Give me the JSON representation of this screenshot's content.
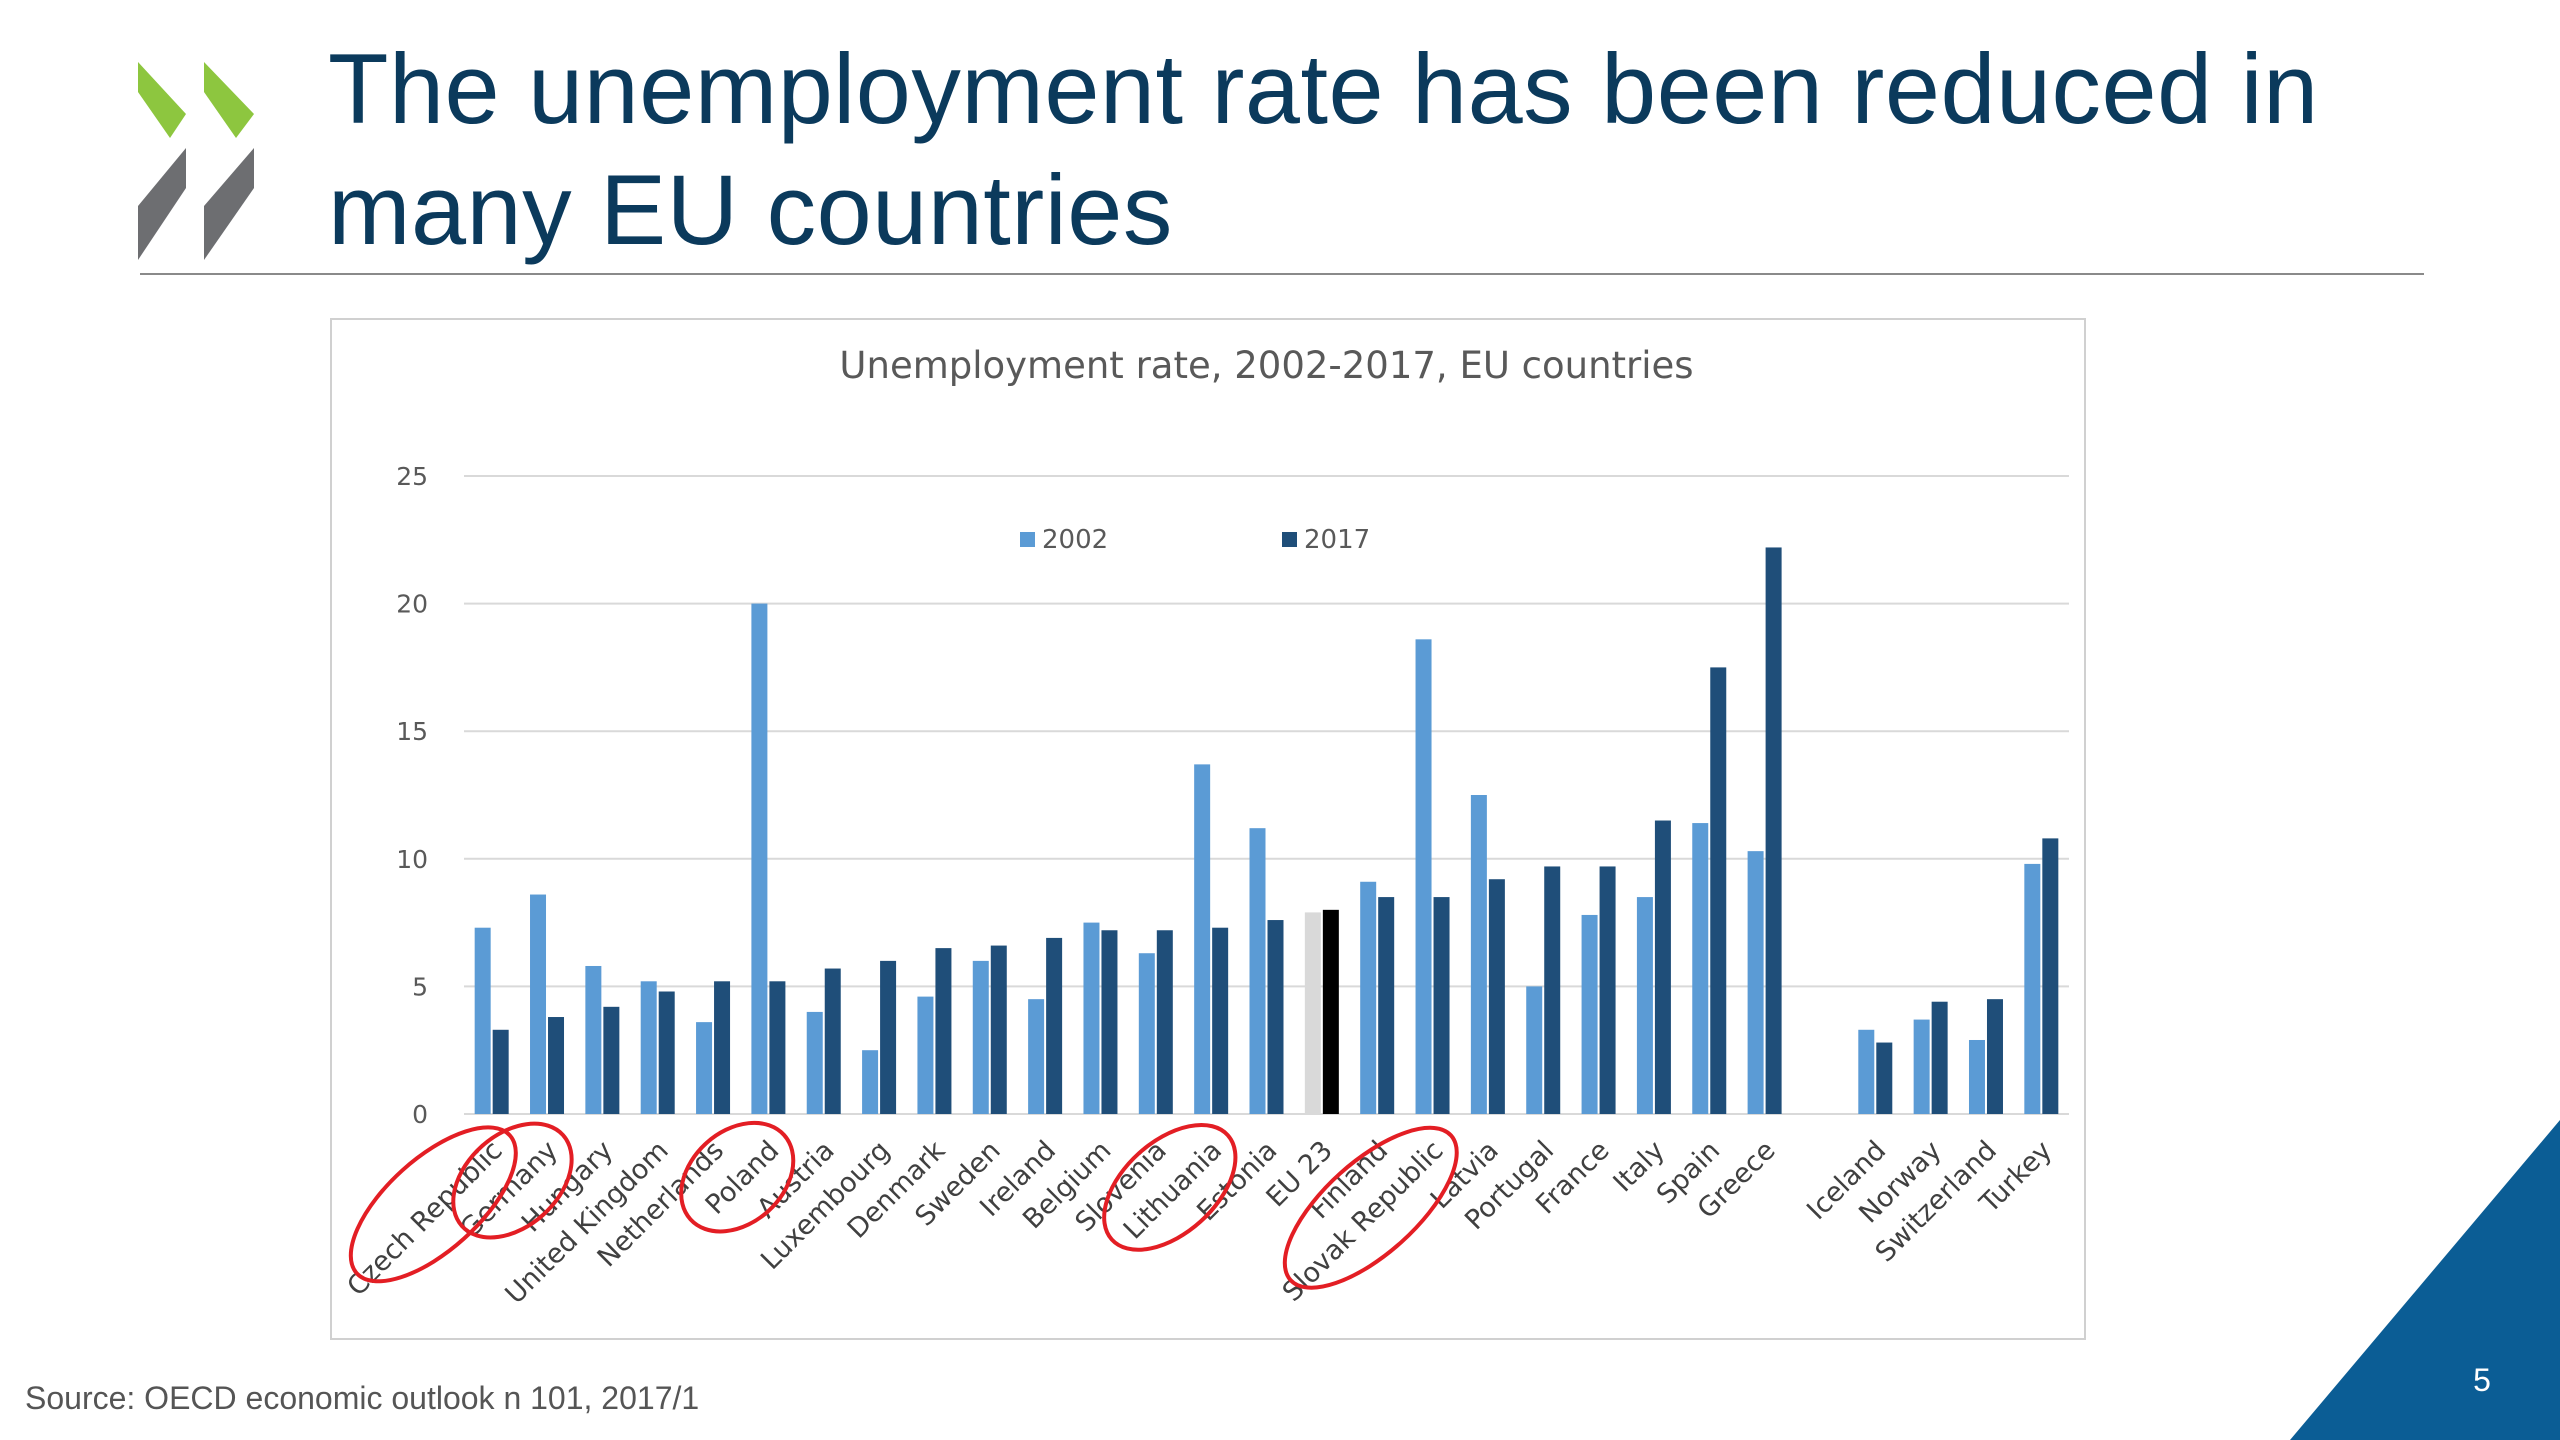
{
  "slide": {
    "title": "The unemployment rate has been reduced in many EU countries",
    "source": "Source: OECD economic outlook n 101, 2017/1",
    "page_number": "5",
    "colors": {
      "title": "#0b3a5c",
      "logo_green": "#8dc63f",
      "logo_grey": "#6d6e71",
      "corner": "#0b5d95"
    }
  },
  "chart_data": {
    "type": "bar",
    "title": "Unemployment rate, 2002-2017, EU countries",
    "ylim": [
      0,
      25
    ],
    "yticks": [
      0,
      5,
      10,
      15,
      20,
      25
    ],
    "grid": true,
    "legend_position": "top-center",
    "categories": [
      "Czech Republic",
      "Germany",
      "Hungary",
      "United Kingdom",
      "Netherlands",
      "Poland",
      "Austria",
      "Luxembourg",
      "Denmark",
      "Sweden",
      "Ireland",
      "Belgium",
      "Slovenia",
      "Lithuania",
      "Estonia",
      "EU 23",
      "Finland",
      "Slovak Republic",
      "Latvia",
      "Portugal",
      "France",
      "Italy",
      "Spain",
      "Greece",
      "",
      "Iceland",
      "Norway",
      "Switzerland",
      "Turkey"
    ],
    "series": [
      {
        "name": "2002",
        "color": "#5b9bd5",
        "values": [
          7.3,
          8.6,
          5.8,
          5.2,
          3.6,
          20.0,
          4.0,
          2.5,
          4.6,
          6.0,
          4.5,
          7.5,
          6.3,
          13.7,
          11.2,
          7.9,
          9.1,
          18.6,
          12.5,
          5.0,
          7.8,
          8.5,
          11.4,
          10.3,
          null,
          3.3,
          3.7,
          2.9,
          9.8
        ]
      },
      {
        "name": "2017",
        "color": "#1f4e79",
        "values": [
          3.3,
          3.8,
          4.2,
          4.8,
          5.2,
          5.2,
          5.7,
          6.0,
          6.5,
          6.6,
          6.9,
          7.2,
          7.2,
          7.3,
          7.6,
          8.0,
          8.5,
          8.5,
          9.2,
          9.7,
          9.7,
          11.5,
          17.5,
          22.2,
          null,
          2.8,
          4.4,
          4.5,
          10.8
        ]
      }
    ],
    "highlight": {
      "category": "EU 23",
      "colors": [
        "#d9d9d9",
        "#000000"
      ]
    },
    "circled_categories": [
      "Czech Republic",
      "Germany",
      "Poland",
      "Lithuania",
      "Slovak Republic"
    ],
    "circle_color": "#e31e24"
  }
}
